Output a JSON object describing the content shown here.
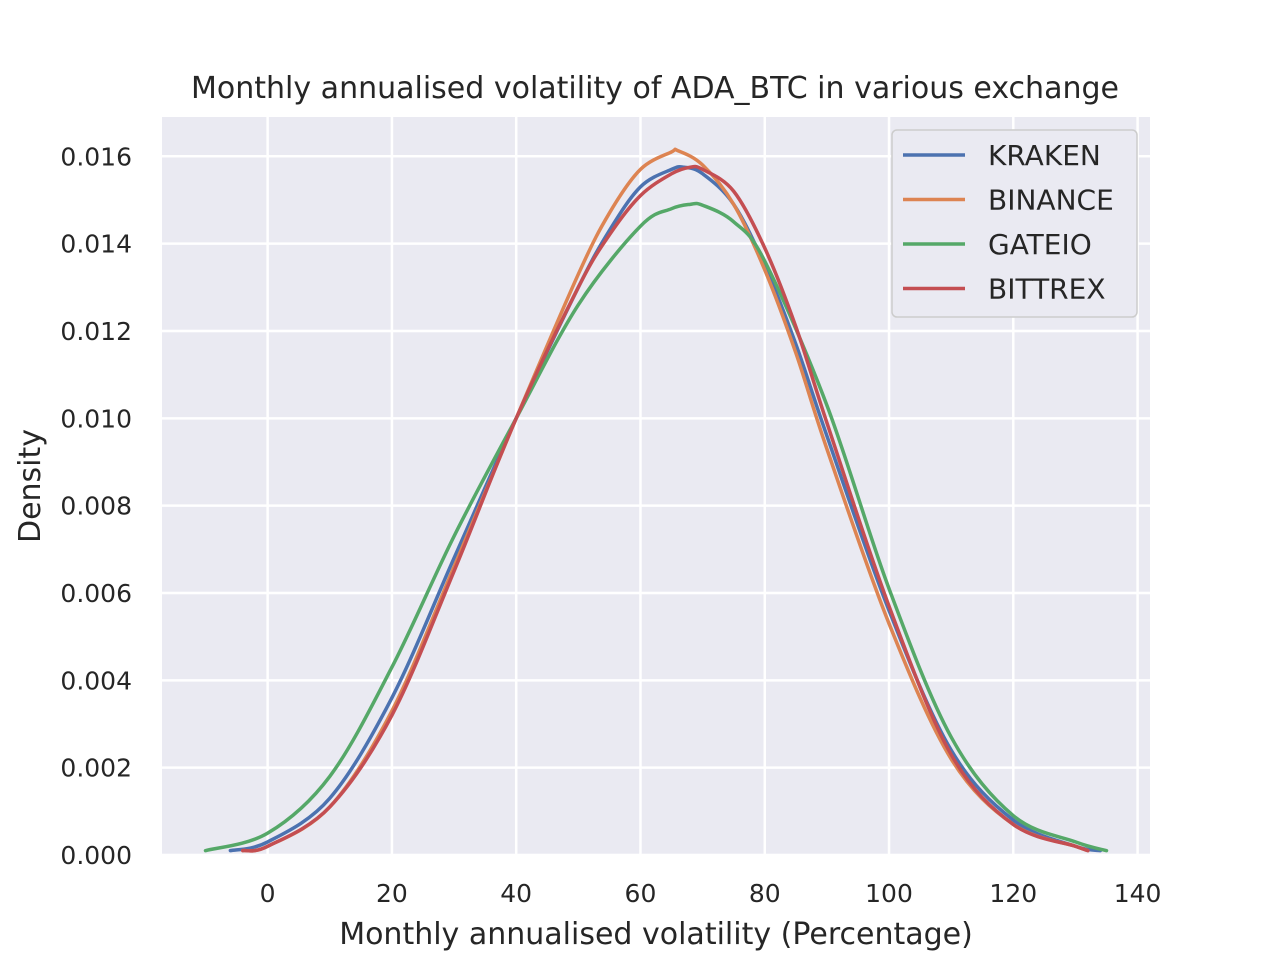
{
  "chart_data": {
    "type": "line",
    "title": "Monthly annualised volatility of ADA_BTC in various exchange",
    "xlabel": "Monthly annualised volatility (Percentage)",
    "ylabel": "Density",
    "xlim": [
      -17,
      142
    ],
    "ylim": [
      0,
      0.0169
    ],
    "x_ticks": [
      0,
      20,
      40,
      60,
      80,
      100,
      120,
      140
    ],
    "x_tick_labels": [
      "0",
      "20",
      "40",
      "60",
      "80",
      "100",
      "120",
      "140"
    ],
    "y_ticks": [
      0,
      0.002,
      0.004,
      0.006,
      0.008,
      0.01,
      0.012,
      0.014,
      0.016
    ],
    "y_tick_labels": [
      "0.000",
      "0.002",
      "0.004",
      "0.006",
      "0.008",
      "0.010",
      "0.012",
      "0.014",
      "0.016"
    ],
    "grid": true,
    "legend_position": "top-right",
    "series": [
      {
        "name": "KRAKEN",
        "color": "#4c72b0",
        "x": [
          -6,
          0,
          10,
          20,
          30,
          40,
          50,
          55,
          60,
          65,
          67,
          70,
          75,
          80,
          85,
          90,
          100,
          110,
          120,
          130,
          134
        ],
        "y": [
          0.0001,
          0.0003,
          0.0013,
          0.0036,
          0.0068,
          0.01,
          0.013,
          0.0143,
          0.0153,
          0.0157,
          0.01575,
          0.0156,
          0.0149,
          0.0135,
          0.0117,
          0.0096,
          0.0056,
          0.0024,
          0.0008,
          0.0002,
          0.0001
        ]
      },
      {
        "name": "BINANCE",
        "color": "#dd8452",
        "x": [
          -4,
          0,
          10,
          20,
          30,
          40,
          50,
          55,
          60,
          65,
          66,
          70,
          75,
          80,
          85,
          90,
          100,
          110,
          120,
          130,
          132
        ],
        "y": [
          0.0001,
          0.0002,
          0.0011,
          0.0033,
          0.0066,
          0.01,
          0.0133,
          0.0147,
          0.0157,
          0.0161,
          0.01613,
          0.0158,
          0.0149,
          0.0134,
          0.0115,
          0.0093,
          0.0053,
          0.0022,
          0.0007,
          0.0002,
          0.0001
        ]
      },
      {
        "name": "GATEIO",
        "color": "#55a868",
        "x": [
          -10,
          0,
          10,
          20,
          30,
          40,
          50,
          60,
          65,
          68,
          70,
          75,
          80,
          90,
          100,
          110,
          120,
          130,
          135
        ],
        "y": [
          0.0001,
          0.0005,
          0.0018,
          0.0043,
          0.0073,
          0.01,
          0.0126,
          0.0144,
          0.0148,
          0.0149,
          0.01488,
          0.0145,
          0.0136,
          0.0103,
          0.0061,
          0.0027,
          0.0009,
          0.0003,
          0.0001
        ]
      },
      {
        "name": "BITTREX",
        "color": "#c44e52",
        "x": [
          -4,
          0,
          10,
          20,
          30,
          40,
          50,
          55,
          60,
          65,
          68,
          70,
          75,
          80,
          85,
          90,
          100,
          110,
          120,
          130,
          132
        ],
        "y": [
          0.0001,
          0.0002,
          0.0011,
          0.0032,
          0.0065,
          0.01,
          0.013,
          0.0142,
          0.0151,
          0.0156,
          0.01575,
          0.0157,
          0.0152,
          0.0139,
          0.0121,
          0.0099,
          0.0057,
          0.0023,
          0.0007,
          0.0002,
          0.0001
        ]
      }
    ]
  }
}
